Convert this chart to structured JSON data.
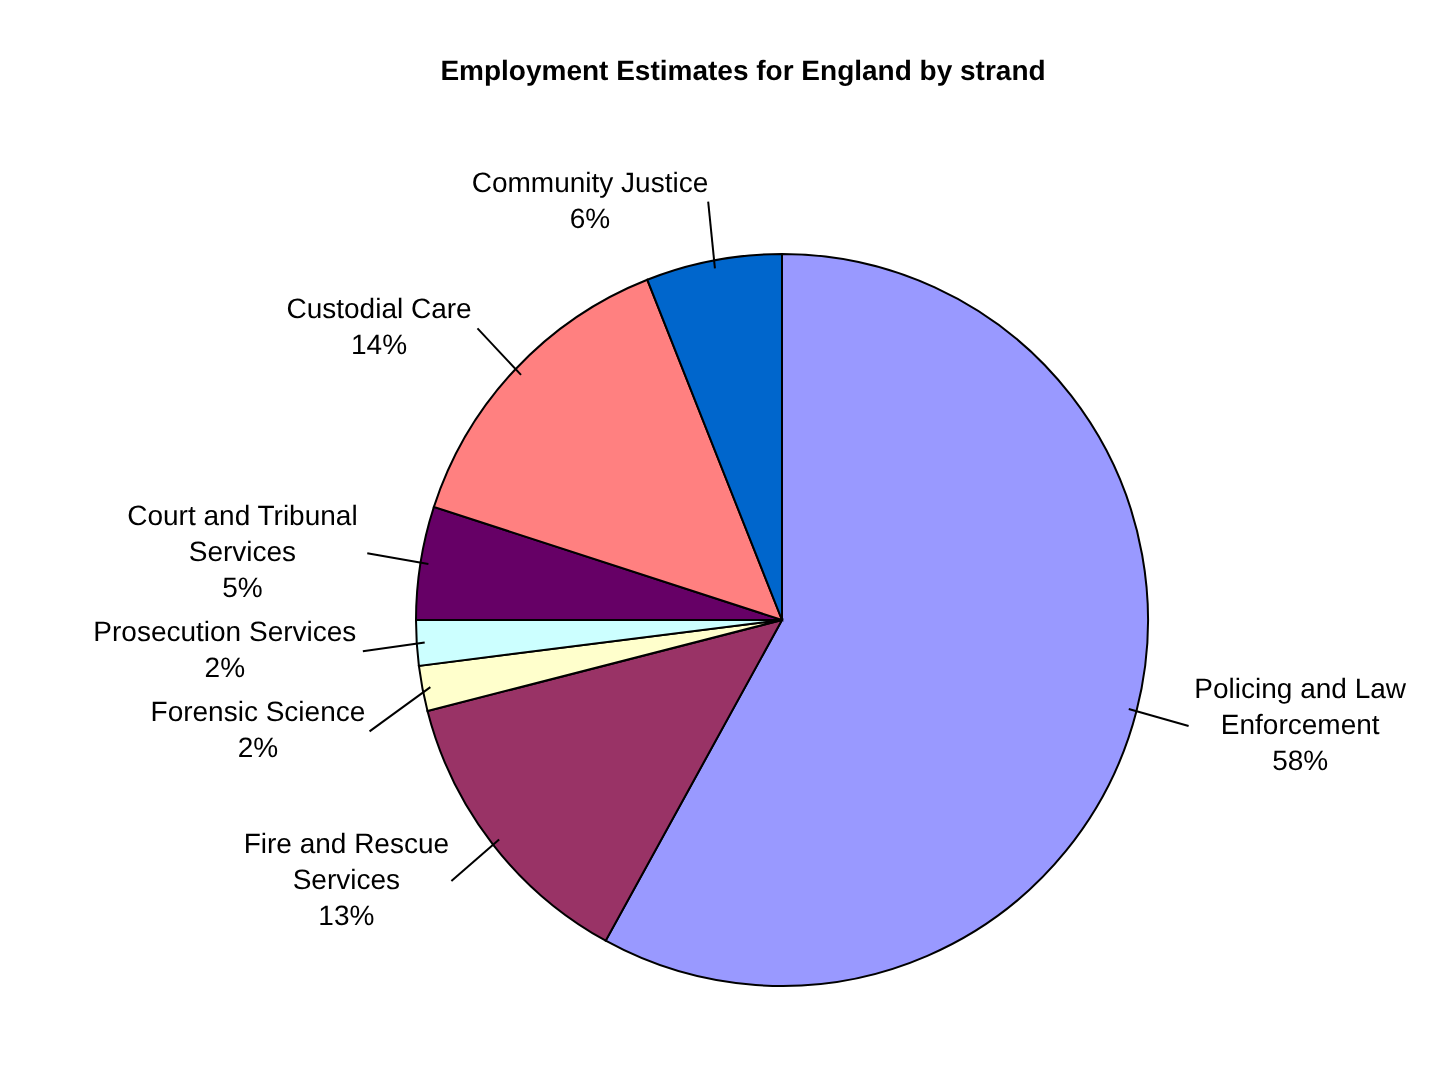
{
  "chart_data": {
    "type": "pie",
    "title": "Employment Estimates for England by strand",
    "categories": [
      "Policing and Law Enforcement",
      "Fire and Rescue Services",
      "Forensic Science",
      "Prosecution Services",
      "Court and Tribunal Services",
      "Custodial Care",
      "Community Justice"
    ],
    "values": [
      58,
      13,
      2,
      2,
      5,
      14,
      6
    ],
    "value_labels": [
      "58%",
      "13%",
      "2%",
      "2%",
      "5%",
      "14%",
      "6%"
    ],
    "colors": [
      "#9999ff",
      "#993366",
      "#ffffcc",
      "#ccffff",
      "#660066",
      "#ff8080",
      "#0066cc"
    ]
  }
}
